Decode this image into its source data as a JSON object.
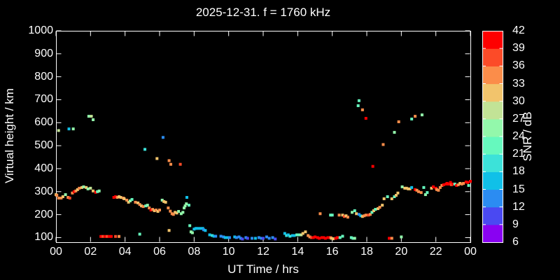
{
  "title": "2025-12-31. f = 1760 kHz",
  "colors": {
    "background": "#000000",
    "text": "#ffffff",
    "frame": "#ffffff"
  },
  "chart_data": {
    "type": "scatter",
    "title": "2025-12-31. f = 1760 kHz",
    "xlabel": "UT Time / hrs",
    "ylabel": "Virtual height / km",
    "xlim": [
      0,
      24
    ],
    "ylim": [
      80,
      1000
    ],
    "grid": false,
    "x_tick_hours": [
      0,
      2,
      4,
      6,
      8,
      10,
      12,
      14,
      16,
      18,
      20,
      22,
      24
    ],
    "x_tick_labels": [
      "00",
      "02",
      "04",
      "06",
      "08",
      "10",
      "12",
      "14",
      "16",
      "18",
      "20",
      "22",
      "00"
    ],
    "y_ticks": [
      100,
      200,
      300,
      400,
      500,
      600,
      700,
      800,
      900,
      1000
    ],
    "colorbar": {
      "label": "SNR / dB",
      "min": 6,
      "max": 42,
      "ticks": [
        6,
        9,
        12,
        15,
        18,
        21,
        24,
        27,
        30,
        33,
        36,
        39,
        42
      ],
      "colors": [
        "#8902f2",
        "#4a49f2",
        "#2b8cf2",
        "#10c0e8",
        "#3ce2d9",
        "#66f9be",
        "#93f8ab",
        "#c2e396",
        "#f2c46c",
        "#fb8d4a",
        "#fc4b28",
        "#fe0000"
      ]
    },
    "point_units": [
      "hour_UT",
      "virtual_height_km",
      "snr_dB"
    ],
    "points": [
      [
        0.0,
        287,
        31
      ],
      [
        0.05,
        284,
        34
      ],
      [
        0.15,
        272,
        34
      ],
      [
        0.3,
        272,
        34
      ],
      [
        0.4,
        278,
        31
      ],
      [
        0.55,
        287,
        25
      ],
      [
        0.7,
        275,
        34
      ],
      [
        0.8,
        272,
        37
      ],
      [
        0.95,
        294,
        34
      ],
      [
        1.05,
        300,
        40
      ],
      [
        1.15,
        303,
        34
      ],
      [
        1.25,
        309,
        31
      ],
      [
        1.35,
        315,
        34
      ],
      [
        1.5,
        318,
        31
      ],
      [
        1.6,
        321,
        25
      ],
      [
        1.75,
        318,
        31
      ],
      [
        1.85,
        312,
        25
      ],
      [
        2.0,
        315,
        28
      ],
      [
        2.15,
        303,
        31
      ],
      [
        2.3,
        297,
        40
      ],
      [
        2.4,
        300,
        22
      ],
      [
        2.5,
        303,
        25
      ],
      [
        0.15,
        566,
        28
      ],
      [
        0.75,
        573,
        16
      ],
      [
        1.0,
        573,
        25
      ],
      [
        1.9,
        628,
        25
      ],
      [
        2.05,
        628,
        28
      ],
      [
        2.15,
        613,
        25
      ],
      [
        2.6,
        105,
        40
      ],
      [
        2.72,
        105,
        37
      ],
      [
        2.84,
        105,
        40
      ],
      [
        2.96,
        105,
        37
      ],
      [
        3.08,
        105,
        40
      ],
      [
        3.2,
        105,
        40
      ],
      [
        3.45,
        105,
        37
      ],
      [
        3.65,
        105,
        34
      ],
      [
        3.35,
        275,
        40
      ],
      [
        3.45,
        278,
        40
      ],
      [
        3.55,
        275,
        34
      ],
      [
        3.65,
        278,
        31
      ],
      [
        3.75,
        275,
        31
      ],
      [
        3.9,
        272,
        34
      ],
      [
        3.95,
        269,
        31
      ],
      [
        4.1,
        263,
        34
      ],
      [
        4.2,
        254,
        31
      ],
      [
        4.3,
        260,
        25
      ],
      [
        4.4,
        266,
        22
      ],
      [
        4.6,
        254,
        34
      ],
      [
        4.75,
        251,
        31
      ],
      [
        4.85,
        244,
        34
      ],
      [
        4.95,
        238,
        31
      ],
      [
        5.05,
        235,
        34
      ],
      [
        5.2,
        238,
        22
      ],
      [
        5.3,
        241,
        25
      ],
      [
        5.4,
        229,
        34
      ],
      [
        5.5,
        220,
        40
      ],
      [
        5.6,
        223,
        34
      ],
      [
        5.7,
        217,
        31
      ],
      [
        5.8,
        220,
        34
      ],
      [
        5.9,
        214,
        31
      ],
      [
        6.0,
        220,
        34
      ],
      [
        6.15,
        263,
        25
      ],
      [
        6.25,
        257,
        31
      ],
      [
        6.35,
        254,
        31
      ],
      [
        4.85,
        115,
        22
      ],
      [
        5.15,
        484,
        19
      ],
      [
        5.85,
        444,
        31
      ],
      [
        6.2,
        536,
        13
      ],
      [
        6.55,
        435,
        34
      ],
      [
        6.65,
        419,
        34
      ],
      [
        7.2,
        419,
        37
      ],
      [
        6.55,
        131,
        31
      ],
      [
        6.5,
        229,
        34
      ],
      [
        6.62,
        215,
        34
      ],
      [
        6.72,
        204,
        34
      ],
      [
        6.8,
        201,
        34
      ],
      [
        6.9,
        210,
        31
      ],
      [
        7.0,
        207,
        31
      ],
      [
        7.1,
        214,
        25
      ],
      [
        7.25,
        204,
        25
      ],
      [
        7.35,
        210,
        25
      ],
      [
        7.42,
        229,
        25
      ],
      [
        7.48,
        238,
        25
      ],
      [
        7.55,
        247,
        25
      ],
      [
        7.58,
        275,
        16
      ],
      [
        7.7,
        241,
        22
      ],
      [
        7.75,
        152,
        22
      ],
      [
        7.82,
        125,
        25
      ],
      [
        7.9,
        121,
        25
      ],
      [
        8.0,
        137,
        16
      ],
      [
        8.1,
        140,
        16
      ],
      [
        8.2,
        140,
        16
      ],
      [
        8.35,
        140,
        16
      ],
      [
        8.5,
        140,
        16
      ],
      [
        8.55,
        134,
        13
      ],
      [
        8.65,
        131,
        16
      ],
      [
        8.9,
        112,
        16
      ],
      [
        9.05,
        109,
        19
      ],
      [
        9.15,
        106,
        16
      ],
      [
        9.25,
        106,
        13
      ],
      [
        9.55,
        106,
        13
      ],
      [
        9.7,
        103,
        13
      ],
      [
        9.8,
        100,
        16
      ],
      [
        9.95,
        100,
        16
      ],
      [
        10.05,
        100,
        13
      ],
      [
        10.35,
        103,
        16
      ],
      [
        10.45,
        100,
        13
      ],
      [
        10.6,
        103,
        13
      ],
      [
        10.7,
        97,
        13
      ],
      [
        10.8,
        94,
        10
      ],
      [
        11.0,
        100,
        13
      ],
      [
        11.1,
        97,
        10
      ],
      [
        11.35,
        97,
        13
      ],
      [
        11.55,
        97,
        16
      ],
      [
        11.75,
        100,
        13
      ],
      [
        11.9,
        97,
        13
      ],
      [
        12.0,
        97,
        10
      ],
      [
        12.2,
        103,
        13
      ],
      [
        12.35,
        97,
        13
      ],
      [
        12.55,
        100,
        13
      ],
      [
        12.7,
        94,
        10
      ],
      [
        13.25,
        118,
        16
      ],
      [
        13.35,
        109,
        19
      ],
      [
        13.45,
        112,
        16
      ],
      [
        13.55,
        106,
        19
      ],
      [
        13.7,
        109,
        16
      ],
      [
        13.8,
        109,
        16
      ],
      [
        13.95,
        112,
        22
      ],
      [
        14.05,
        112,
        22
      ],
      [
        14.2,
        112,
        28
      ],
      [
        14.3,
        118,
        31
      ],
      [
        14.45,
        125,
        31
      ],
      [
        14.6,
        109,
        34
      ],
      [
        14.7,
        103,
        34
      ],
      [
        14.8,
        100,
        37
      ],
      [
        14.9,
        100,
        40
      ],
      [
        15.0,
        103,
        40
      ],
      [
        15.15,
        100,
        40
      ],
      [
        15.25,
        97,
        40
      ],
      [
        15.4,
        100,
        40
      ],
      [
        15.5,
        100,
        40
      ],
      [
        15.6,
        97,
        40
      ],
      [
        15.75,
        100,
        40
      ],
      [
        15.9,
        100,
        37
      ],
      [
        15.95,
        97,
        31
      ],
      [
        16.05,
        95,
        31
      ],
      [
        16.2,
        97,
        40
      ],
      [
        16.3,
        100,
        40
      ],
      [
        16.45,
        100,
        22
      ],
      [
        16.6,
        106,
        22
      ],
      [
        17.1,
        100,
        22
      ],
      [
        17.2,
        97,
        22
      ],
      [
        17.3,
        97,
        25
      ],
      [
        19.3,
        97,
        40
      ],
      [
        19.45,
        97,
        34
      ],
      [
        20.0,
        103,
        25
      ],
      [
        15.3,
        204,
        34
      ],
      [
        15.9,
        198,
        22
      ],
      [
        16.0,
        198,
        22
      ],
      [
        16.4,
        198,
        34
      ],
      [
        16.6,
        198,
        31
      ],
      [
        16.7,
        192,
        37
      ],
      [
        16.8,
        195,
        31
      ],
      [
        16.9,
        189,
        34
      ],
      [
        17.15,
        210,
        25
      ],
      [
        17.3,
        217,
        22
      ],
      [
        17.4,
        204,
        31
      ],
      [
        17.55,
        201,
        13
      ],
      [
        17.65,
        195,
        16
      ],
      [
        17.75,
        192,
        31
      ],
      [
        17.85,
        195,
        34
      ],
      [
        17.95,
        198,
        34
      ],
      [
        18.1,
        198,
        37
      ],
      [
        18.2,
        201,
        34
      ],
      [
        18.3,
        210,
        22
      ],
      [
        18.4,
        217,
        31
      ],
      [
        18.5,
        223,
        22
      ],
      [
        18.65,
        226,
        31
      ],
      [
        18.75,
        232,
        34
      ],
      [
        18.9,
        241,
        31
      ],
      [
        19.0,
        269,
        31
      ],
      [
        19.2,
        278,
        22
      ],
      [
        19.45,
        269,
        31
      ],
      [
        19.6,
        278,
        22
      ],
      [
        19.7,
        284,
        31
      ],
      [
        19.8,
        294,
        31
      ],
      [
        20.05,
        321,
        25
      ],
      [
        20.2,
        315,
        31
      ],
      [
        20.3,
        315,
        31
      ],
      [
        20.4,
        312,
        31
      ],
      [
        20.5,
        312,
        31
      ],
      [
        20.6,
        318,
        16
      ],
      [
        20.8,
        309,
        40
      ],
      [
        20.9,
        306,
        34
      ],
      [
        21.0,
        300,
        34
      ],
      [
        21.15,
        296,
        34
      ],
      [
        21.3,
        318,
        22
      ],
      [
        21.4,
        287,
        25
      ],
      [
        21.5,
        296,
        22
      ],
      [
        21.75,
        315,
        31
      ],
      [
        21.85,
        321,
        40
      ],
      [
        22.0,
        315,
        40
      ],
      [
        22.05,
        309,
        34
      ],
      [
        22.15,
        306,
        34
      ],
      [
        22.25,
        318,
        34
      ],
      [
        22.35,
        327,
        34
      ],
      [
        22.45,
        330,
        40
      ],
      [
        22.6,
        333,
        40
      ],
      [
        22.65,
        336,
        40
      ],
      [
        22.75,
        333,
        40
      ],
      [
        22.85,
        340,
        40
      ],
      [
        22.9,
        330,
        37
      ],
      [
        23.0,
        333,
        40
      ],
      [
        23.1,
        333,
        22
      ],
      [
        23.2,
        327,
        40
      ],
      [
        23.3,
        330,
        34
      ],
      [
        23.4,
        336,
        31
      ],
      [
        23.5,
        333,
        34
      ],
      [
        23.6,
        336,
        34
      ],
      [
        23.75,
        342,
        40
      ],
      [
        23.85,
        340,
        40
      ],
      [
        23.9,
        327,
        22
      ],
      [
        24.0,
        345,
        40
      ],
      [
        17.5,
        674,
        22
      ],
      [
        17.55,
        696,
        22
      ],
      [
        17.75,
        656,
        34
      ],
      [
        17.95,
        619,
        40
      ],
      [
        18.35,
        410,
        40
      ],
      [
        18.95,
        505,
        34
      ],
      [
        19.6,
        558,
        25
      ],
      [
        19.85,
        604,
        34
      ],
      [
        20.6,
        616,
        22
      ],
      [
        20.8,
        628,
        34
      ],
      [
        21.2,
        634,
        25
      ]
    ]
  }
}
